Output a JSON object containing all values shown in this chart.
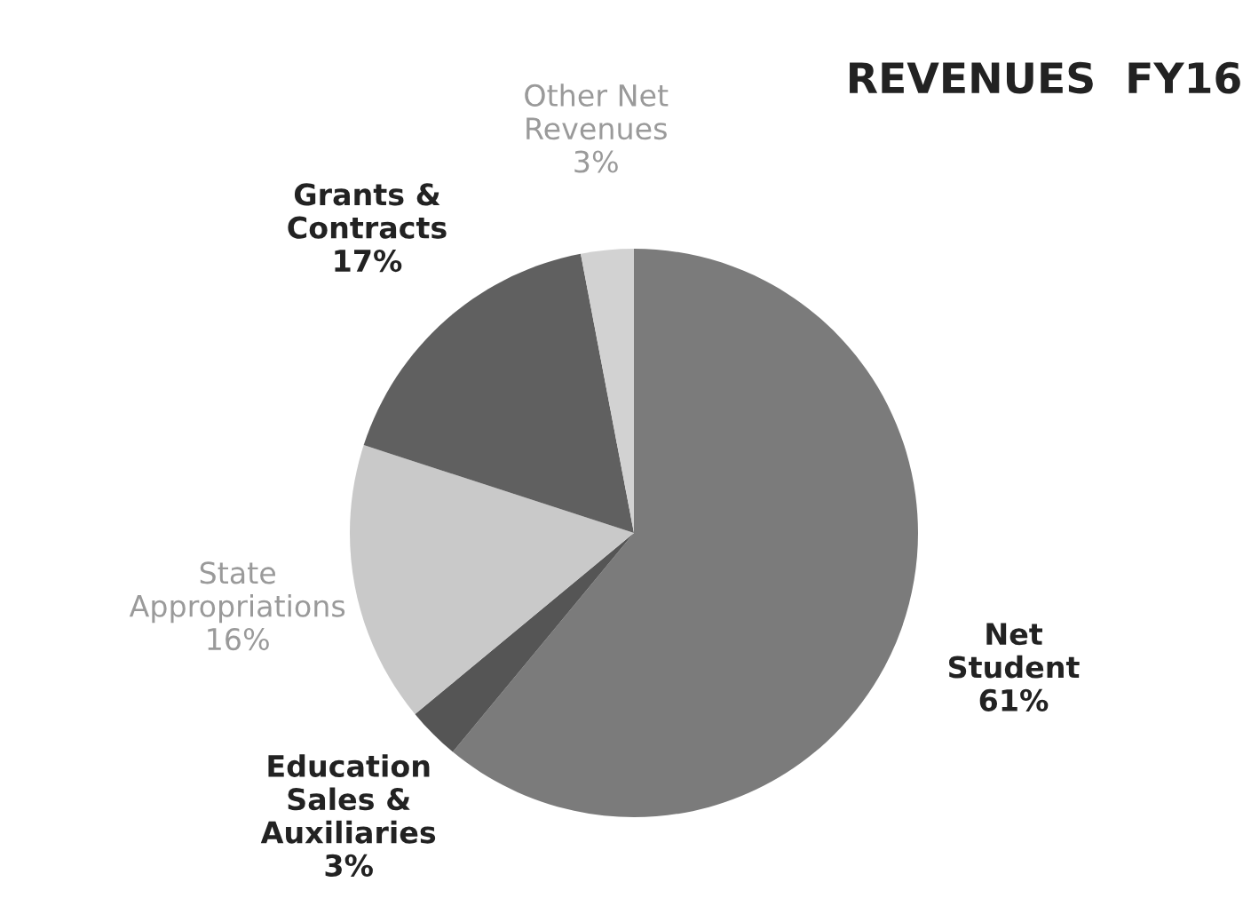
{
  "chart_data": {
    "type": "pie",
    "title": "REVENUES  FY16",
    "categories": [
      "Net Student",
      "Education Sales & Auxiliaries",
      "State Appropriations",
      "Grants & Contracts",
      "Other Net Revenues"
    ],
    "values": [
      61,
      3,
      16,
      17,
      3
    ],
    "value_labels": [
      "61%",
      "3%",
      "16%",
      "17%",
      "3%"
    ],
    "colors": [
      "#7b7b7b",
      "#555555",
      "#c9c9c9",
      "#606060",
      "#d2d2d2"
    ]
  }
}
